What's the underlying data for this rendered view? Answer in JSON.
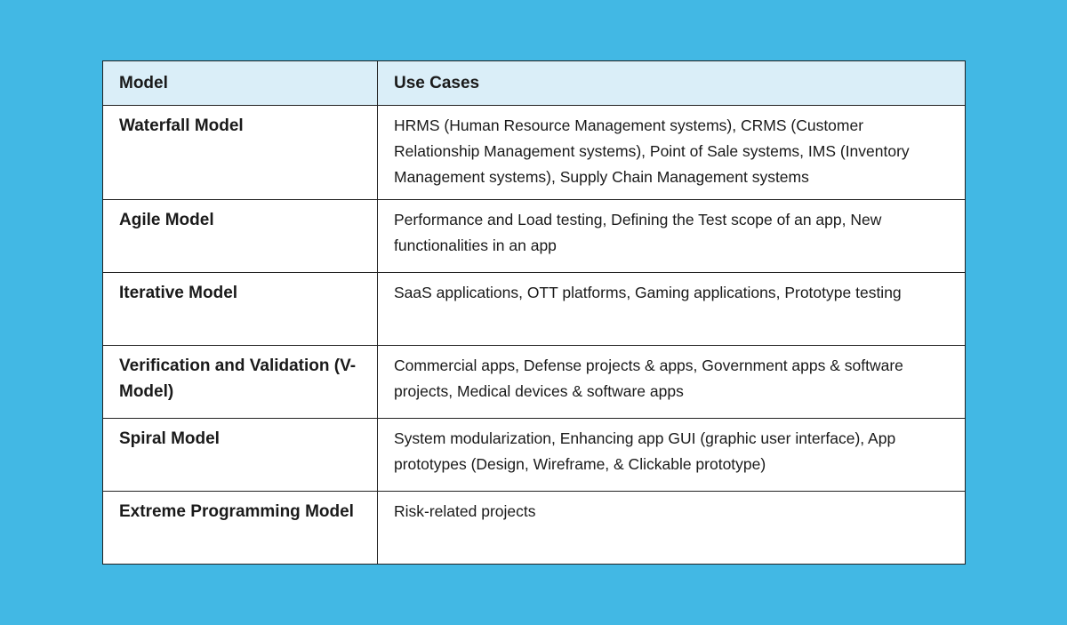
{
  "table": {
    "header": [
      "Model",
      "Use Cases"
    ],
    "rows": [
      [
        "Waterfall Model",
        "HRMS (Human Resource Management systems), CRMS (Customer Relationship Management systems), Point of Sale systems, IMS (Inventory Management systems), Supply Chain Management systems"
      ],
      [
        "Agile Model",
        "Performance and Load testing, Defining the Test scope of an app, New functionalities in an app"
      ],
      [
        "Iterative Model",
        "SaaS applications, OTT platforms, Gaming applications, Prototype testing"
      ],
      [
        "Verification and Validation (V-Model)",
        "Commercial apps, Defense projects & apps, Government apps & software projects, Medical devices & software apps"
      ],
      [
        "Spiral Model",
        "System modularization, Enhancing app GUI (graphic user interface), App prototypes (Design, Wireframe, & Clickable prototype)"
      ],
      [
        "Extreme Programming Model",
        "Risk-related projects"
      ]
    ]
  }
}
